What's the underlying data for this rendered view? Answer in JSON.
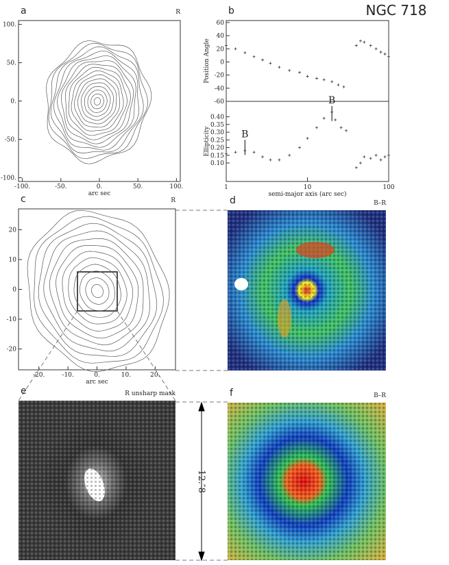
{
  "figure": {
    "title": "NGC 718",
    "scale_label": "12.″8"
  },
  "panels": {
    "a": {
      "label": "a",
      "band": "R",
      "xlabel": "arc sec",
      "xlim": [
        -105,
        105
      ],
      "ylim": [
        -105,
        105
      ],
      "xticks": [
        {
          "value": -100,
          "label": "-100."
        },
        {
          "value": -50,
          "label": "-50."
        },
        {
          "value": 0,
          "label": "0."
        },
        {
          "value": 50,
          "label": "50."
        },
        {
          "value": 100,
          "label": "100."
        }
      ],
      "yticks": [
        {
          "value": 100,
          "label": "100."
        },
        {
          "value": 50,
          "label": "50."
        },
        {
          "value": 0,
          "label": "0."
        },
        {
          "value": -50,
          "label": "-50."
        },
        {
          "value": -100,
          "label": "-100."
        }
      ]
    },
    "c": {
      "label": "c",
      "band": "R",
      "xlabel": "arc sec",
      "xlim": [
        -27,
        27
      ],
      "ylim": [
        -27,
        27
      ],
      "xticks": [
        {
          "value": -20,
          "label": "-20."
        },
        {
          "value": -10,
          "label": "-10."
        },
        {
          "value": 0,
          "label": "0."
        },
        {
          "value": 10,
          "label": "10."
        },
        {
          "value": 20,
          "label": "20."
        }
      ],
      "yticks": [
        20,
        10,
        0,
        -10,
        -20
      ]
    },
    "d": {
      "label": "d",
      "band": "B–R"
    },
    "e": {
      "label": "e",
      "band": "R unsharp mask"
    },
    "f": {
      "label": "f",
      "band": "B–R"
    }
  },
  "chart_data": [
    {
      "type": "scatter",
      "label": "b",
      "ylabel": "Position Angle",
      "log_x": true,
      "xlim": [
        1,
        100
      ],
      "ylim": [
        -60,
        63
      ],
      "yticks": [
        60,
        40,
        20,
        0,
        -20,
        -40,
        -60
      ],
      "x": [
        1,
        1.3,
        1.7,
        2.2,
        2.8,
        3.5,
        4.5,
        6,
        8,
        10,
        13,
        16,
        20,
        24,
        28,
        null,
        40,
        45,
        50,
        60,
        70,
        80,
        90,
        100
      ],
      "values": [
        25,
        20,
        14,
        8,
        3,
        -2,
        -8,
        -13,
        -16,
        -22,
        -25,
        -27,
        -30,
        -35,
        -38,
        null,
        25,
        32,
        30,
        25,
        20,
        15,
        12,
        8
      ]
    },
    {
      "type": "scatter",
      "ylabel": "Ellipticity",
      "xlabel": "semi-major axis (arc sec)",
      "log_x": true,
      "xlim": [
        1,
        100
      ],
      "ylim": [
        -0.02,
        0.5
      ],
      "xticks": [
        1,
        10,
        100
      ],
      "yticks": [
        {
          "value": 0.4,
          "label": "0.40"
        },
        {
          "value": 0.35,
          "label": "0.35"
        },
        {
          "value": 0.3,
          "label": "0.30"
        },
        {
          "value": 0.25,
          "label": "0.25"
        },
        {
          "value": 0.2,
          "label": "0.20"
        },
        {
          "value": 0.15,
          "label": "0.15"
        },
        {
          "value": 0.1,
          "label": "0.10"
        }
      ],
      "x": [
        1,
        1.3,
        1.7,
        2.2,
        2.8,
        3.5,
        4.5,
        6,
        8,
        10,
        13,
        16,
        20,
        22,
        26,
        30,
        null,
        40,
        45,
        50,
        60,
        70,
        80,
        90,
        100
      ],
      "values": [
        0.16,
        0.17,
        0.18,
        0.17,
        0.14,
        0.12,
        0.12,
        0.15,
        0.2,
        0.26,
        0.33,
        0.39,
        0.43,
        0.38,
        0.33,
        0.31,
        null,
        0.07,
        0.1,
        0.14,
        0.13,
        0.15,
        0.12,
        0.14,
        0.15
      ],
      "annotations": [
        {
          "text": "B",
          "x": 1.7,
          "y": 0.25
        },
        {
          "text": "B",
          "x": 20,
          "y": 0.47
        }
      ]
    }
  ]
}
